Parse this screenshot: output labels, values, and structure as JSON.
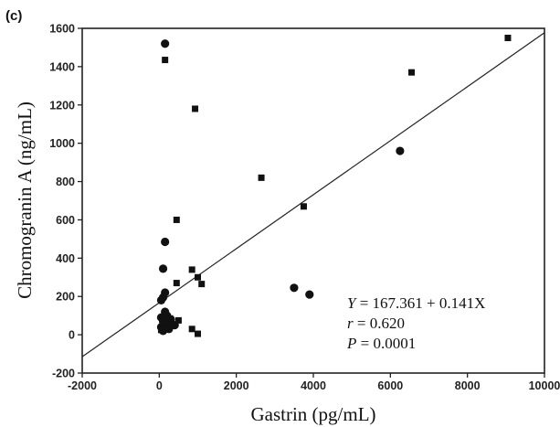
{
  "chart_data": {
    "type": "scatter",
    "panel_label": "(c)",
    "xlabel": "Gastrin (pg/mL)",
    "ylabel": "Chromogranin A (ng/mL)",
    "xlim": [
      -2000,
      10000
    ],
    "ylim": [
      -200,
      1600
    ],
    "xticks": [
      -2000,
      0,
      2000,
      4000,
      6000,
      8000,
      10000
    ],
    "yticks": [
      -200,
      0,
      200,
      400,
      600,
      800,
      1000,
      1200,
      1400,
      1600
    ],
    "grid": false,
    "series": [
      {
        "marker": "square",
        "points": [
          {
            "x": 150,
            "y": 1435
          },
          {
            "x": 930,
            "y": 1180
          },
          {
            "x": 9050,
            "y": 1550
          },
          {
            "x": 6550,
            "y": 1370
          },
          {
            "x": 2650,
            "y": 820
          },
          {
            "x": 3750,
            "y": 670
          },
          {
            "x": 450,
            "y": 600
          },
          {
            "x": 850,
            "y": 340
          },
          {
            "x": 1000,
            "y": 300
          },
          {
            "x": 1100,
            "y": 265
          },
          {
            "x": 450,
            "y": 270
          },
          {
            "x": 280,
            "y": 85
          },
          {
            "x": 500,
            "y": 75
          },
          {
            "x": 850,
            "y": 30
          },
          {
            "x": 1000,
            "y": 5
          },
          {
            "x": 50,
            "y": 25
          }
        ]
      },
      {
        "marker": "circle",
        "points": [
          {
            "x": 150,
            "y": 1520
          },
          {
            "x": 6250,
            "y": 960
          },
          {
            "x": 150,
            "y": 485
          },
          {
            "x": 100,
            "y": 345
          },
          {
            "x": 3500,
            "y": 245
          },
          {
            "x": 3900,
            "y": 210
          },
          {
            "x": 150,
            "y": 220
          },
          {
            "x": 100,
            "y": 195
          },
          {
            "x": 50,
            "y": 180
          },
          {
            "x": 150,
            "y": 120
          },
          {
            "x": 200,
            "y": 100
          },
          {
            "x": 50,
            "y": 90
          },
          {
            "x": 300,
            "y": 80
          },
          {
            "x": 100,
            "y": 70
          },
          {
            "x": 200,
            "y": 60
          },
          {
            "x": 400,
            "y": 50
          },
          {
            "x": 50,
            "y": 40
          },
          {
            "x": 150,
            "y": 30
          },
          {
            "x": 250,
            "y": 30
          },
          {
            "x": 100,
            "y": 20
          }
        ]
      }
    ],
    "regression_line": {
      "intercept": 167.361,
      "slope": 0.141
    },
    "annotations": [
      {
        "var": "Y",
        "text": " = 167.361 + 0.141X"
      },
      {
        "var": "r",
        "text": " = 0.620"
      },
      {
        "var": "P",
        "text": " = 0.0001"
      }
    ]
  }
}
